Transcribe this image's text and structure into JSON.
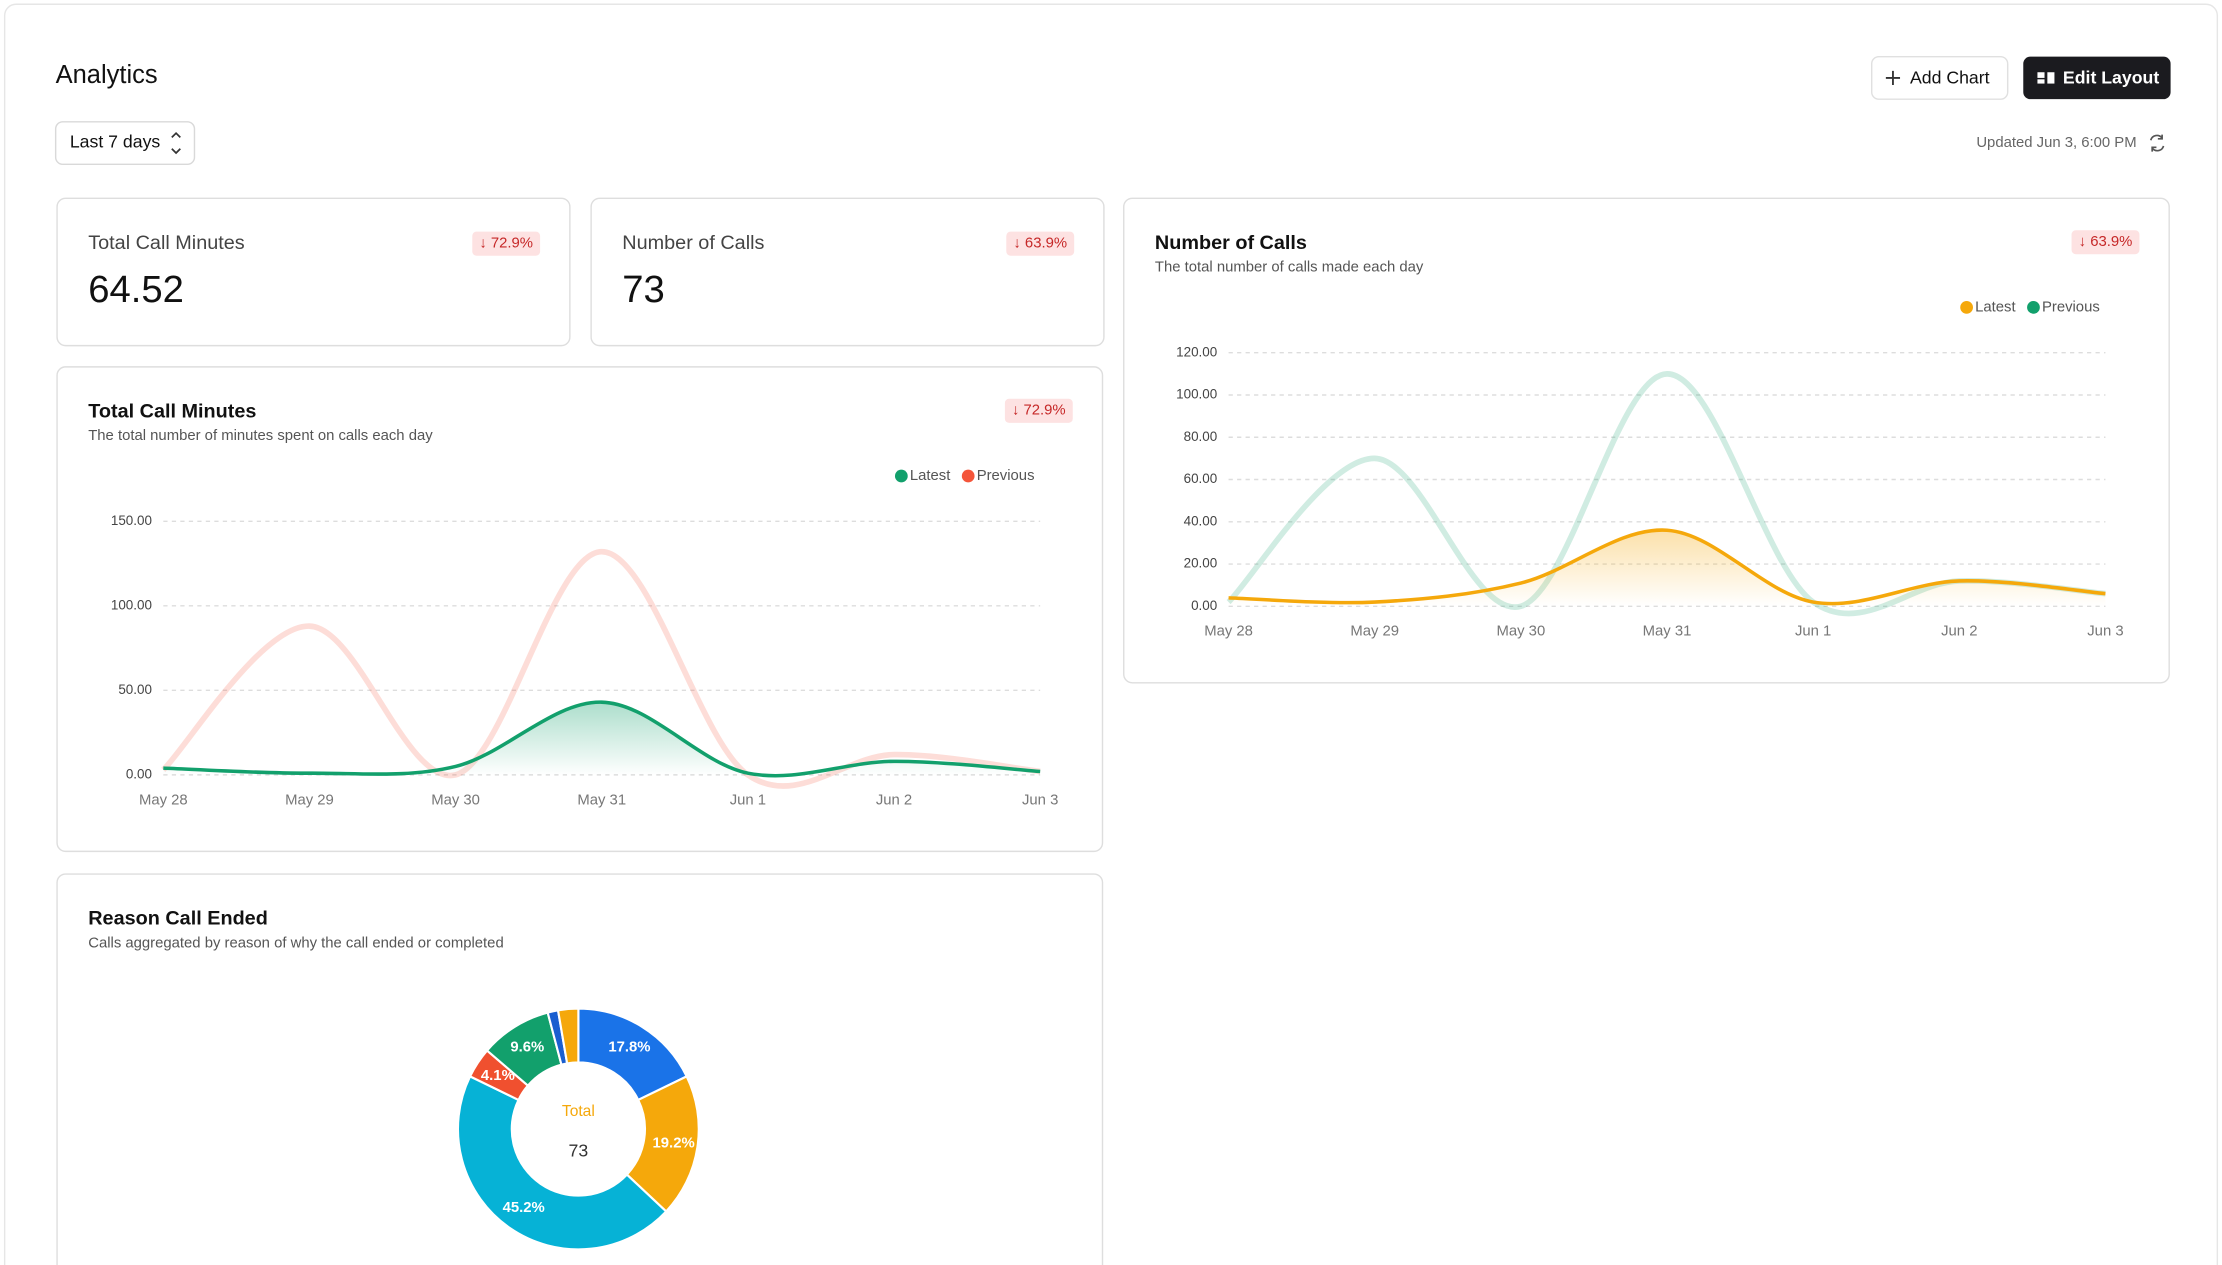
{
  "header": {
    "title": "Analytics",
    "date_range": "Last 7 days",
    "add_chart": "Add Chart",
    "edit_layout": "Edit Layout",
    "updated": "Updated Jun 3, 6:00 PM"
  },
  "stats": [
    {
      "title": "Total Call Minutes",
      "value": 64.52,
      "change": "↓ 72.9%"
    },
    {
      "title": "Number of Calls",
      "value": 73,
      "change": "↓ 63.9%"
    }
  ],
  "charts": [
    {
      "type": "line",
      "title": "Total Call Minutes",
      "subtitle": "The total number of minutes spent on calls each day",
      "change": "↓ 72.9%",
      "categories": [
        "May 28",
        "May 29",
        "May 30",
        "May 31",
        "Jun 1",
        "Jun 2",
        "Jun 3"
      ],
      "series": [
        {
          "name": "Latest",
          "color": "#12a06c",
          "values": [
            4,
            1,
            5,
            43,
            1,
            8,
            2
          ]
        },
        {
          "name": "Previous",
          "color": "#f4553a",
          "values": [
            3,
            88,
            0,
            132,
            0,
            12,
            2
          ]
        }
      ],
      "ylim": [
        0,
        150
      ],
      "yticks": [
        {
          "value": 0,
          "label": "0.00"
        },
        {
          "value": 50,
          "label": "50.00"
        },
        {
          "value": 100,
          "label": "100.00"
        },
        {
          "value": 150,
          "label": "150.00"
        }
      ],
      "grid": true,
      "legend": "top-right"
    },
    {
      "type": "line",
      "title": "Number of Calls",
      "subtitle": "The total number of calls made each day",
      "change": "↓ 63.9%",
      "categories": [
        "May 28",
        "May 29",
        "May 30",
        "May 31",
        "Jun 1",
        "Jun 2",
        "Jun 3"
      ],
      "series": [
        {
          "name": "Latest",
          "color": "#f5a80b",
          "values": [
            4,
            2,
            11,
            36,
            2,
            12,
            6
          ]
        },
        {
          "name": "Previous",
          "color": "#12a06c",
          "values": [
            2,
            70,
            0,
            110,
            2,
            12,
            6
          ]
        }
      ],
      "ylim": [
        0,
        120
      ],
      "yticks": [
        {
          "value": 0,
          "label": "0.00"
        },
        {
          "value": 20,
          "label": "20.00"
        },
        {
          "value": 40,
          "label": "40.00"
        },
        {
          "value": 60,
          "label": "60.00"
        },
        {
          "value": 80,
          "label": "80.00"
        },
        {
          "value": 100,
          "label": "100.00"
        },
        {
          "value": 120,
          "label": "120.00"
        }
      ],
      "grid": true,
      "legend": "top-right"
    },
    {
      "type": "donut",
      "title": "Reason Call Ended",
      "subtitle": "Calls aggregated by reason of why the call ended or completed",
      "values": [
        17.8,
        19.2,
        45.2,
        4.1,
        9.6,
        1.4,
        2.7
      ],
      "value_labels": [
        "17.8%",
        "19.2%",
        "45.2%",
        "4.1%",
        "9.6%",
        null,
        null
      ],
      "colors": [
        "#1a73e8",
        "#f5a80b",
        "#06b2d6",
        "#f0502f",
        "#12a06c",
        "#1a5fd0",
        "#f5a80b"
      ],
      "center_label": "Total",
      "center_value": 73
    }
  ]
}
